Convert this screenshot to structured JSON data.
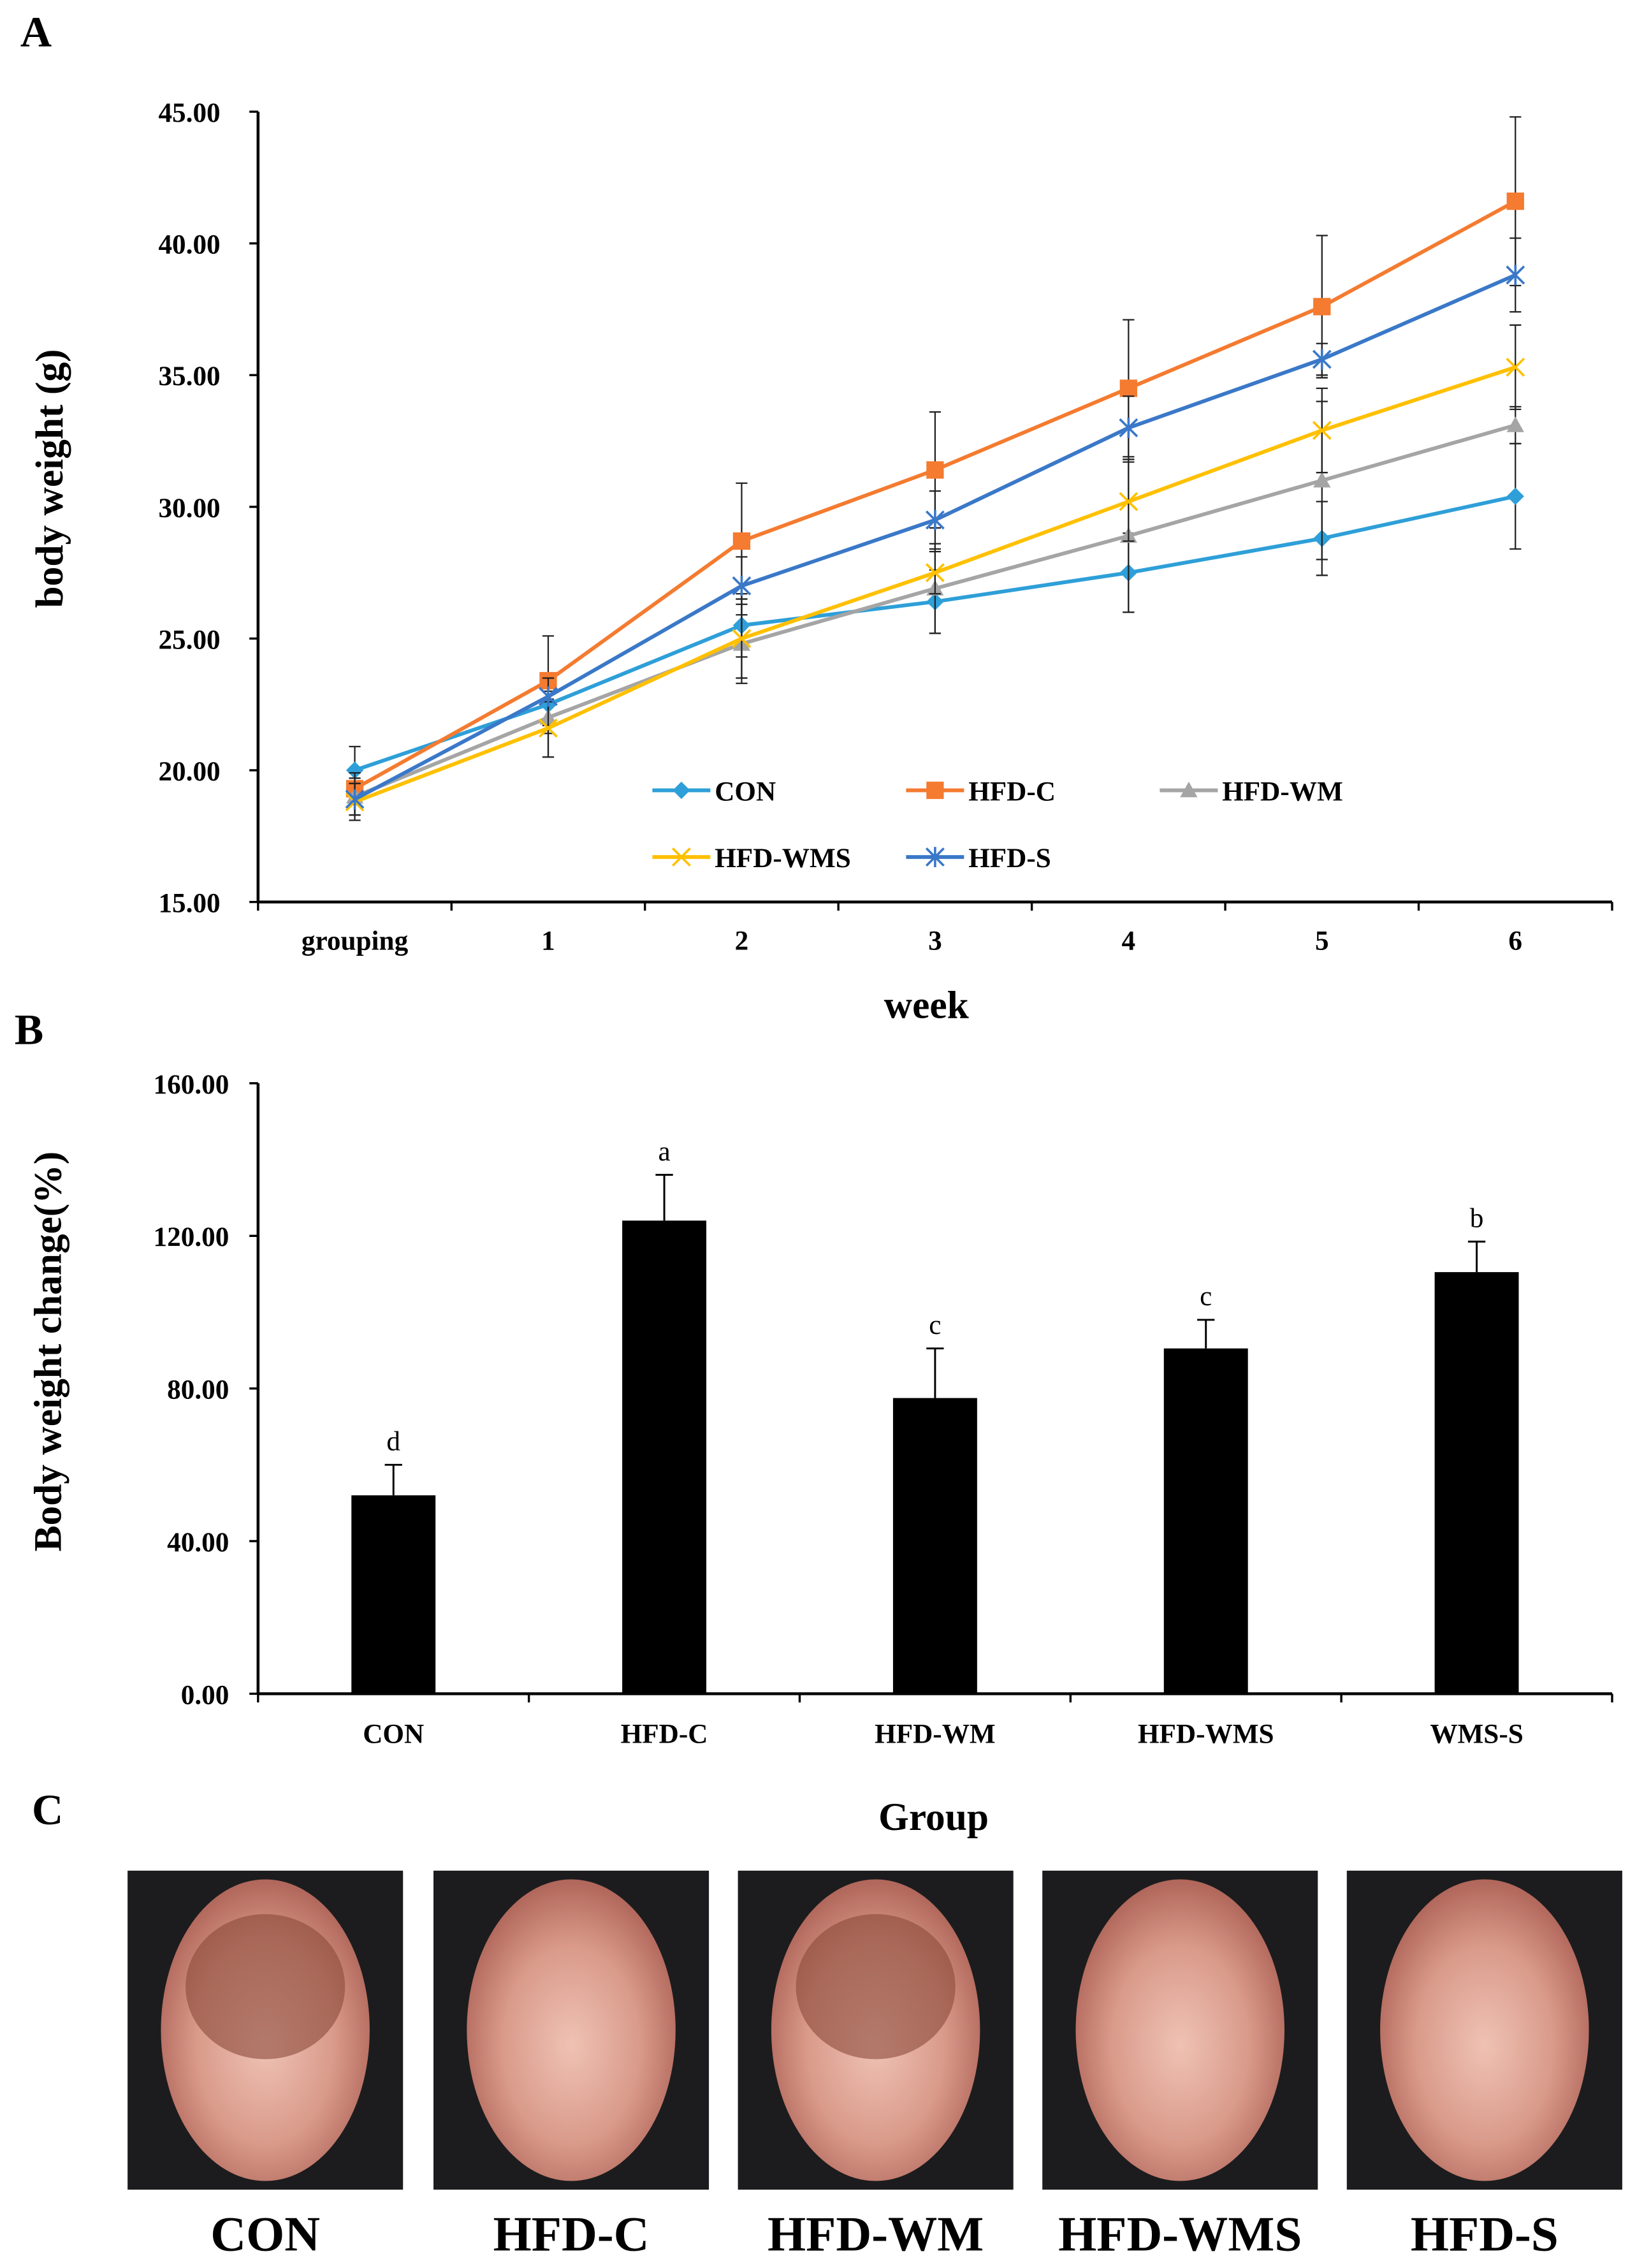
{
  "panels": {
    "a": "A",
    "b": "B",
    "c": "C"
  },
  "chart_data": [
    {
      "type": "line",
      "ylabel": "body weight (g)",
      "xlabel": "week",
      "categories": [
        "grouping",
        "1",
        "2",
        "3",
        "4",
        "5",
        "6"
      ],
      "ylim": [
        15,
        45
      ],
      "yticks": [
        "15.00",
        "20.00",
        "25.00",
        "30.00",
        "35.00",
        "40.00",
        "45.00"
      ],
      "legend_position": "inside-bottom-center",
      "series": [
        {
          "name": "CON",
          "color": "#2E9FD8",
          "marker": "diamond",
          "values": [
            20.0,
            22.5,
            25.5,
            26.4,
            27.5,
            28.8,
            30.4
          ],
          "errors": [
            0.9,
            1.1,
            1.2,
            1.2,
            1.5,
            1.4,
            2.0
          ]
        },
        {
          "name": "HFD-C",
          "color": "#F47B30",
          "marker": "square",
          "values": [
            19.3,
            23.4,
            28.7,
            31.4,
            34.5,
            37.6,
            41.6
          ],
          "errors": [
            0.6,
            1.7,
            2.2,
            2.2,
            2.6,
            2.7,
            3.2
          ]
        },
        {
          "name": "HFD-WM",
          "color": "#A5A5A5",
          "marker": "triangle",
          "values": [
            19.0,
            22.0,
            24.8,
            26.9,
            28.9,
            31.0,
            33.1
          ],
          "errors": [
            0.7,
            1.5,
            1.5,
            1.7,
            2.9,
            3.0,
            0.7
          ]
        },
        {
          "name": "HFD-WMS",
          "color": "#FFC000",
          "marker": "x",
          "values": [
            18.8,
            21.6,
            25.0,
            27.5,
            30.2,
            32.9,
            35.3
          ],
          "errors": [
            0.7,
            1.1,
            1.5,
            0.8,
            1.5,
            1.6,
            1.6
          ]
        },
        {
          "name": "HFD-S",
          "color": "#3A78C8",
          "marker": "star",
          "values": [
            18.9,
            22.8,
            27.0,
            29.5,
            33.0,
            35.6,
            38.8
          ],
          "errors": [
            0.6,
            0.2,
            1.1,
            1.1,
            1.2,
            0.6,
            1.4
          ]
        }
      ]
    },
    {
      "type": "bar",
      "ylabel": "Body weight change(%)",
      "xlabel": "Group",
      "categories": [
        "CON",
        "HFD-C",
        "HFD-WM",
        "HFD-WMS",
        "WMS-S"
      ],
      "values": [
        52,
        124,
        77.5,
        90.5,
        110.5
      ],
      "errors": [
        8,
        12,
        13,
        7.5,
        8
      ],
      "letters": [
        "d",
        "a",
        "c",
        "c",
        "b"
      ],
      "ylim": [
        0,
        160
      ],
      "yticks": [
        "0.00",
        "40.00",
        "80.00",
        "120.00",
        "160.00"
      ],
      "color": "#000000"
    }
  ],
  "photos": [
    "CON",
    "HFD-C",
    "HFD-WM",
    "HFD-WMS",
    "HFD-S"
  ]
}
